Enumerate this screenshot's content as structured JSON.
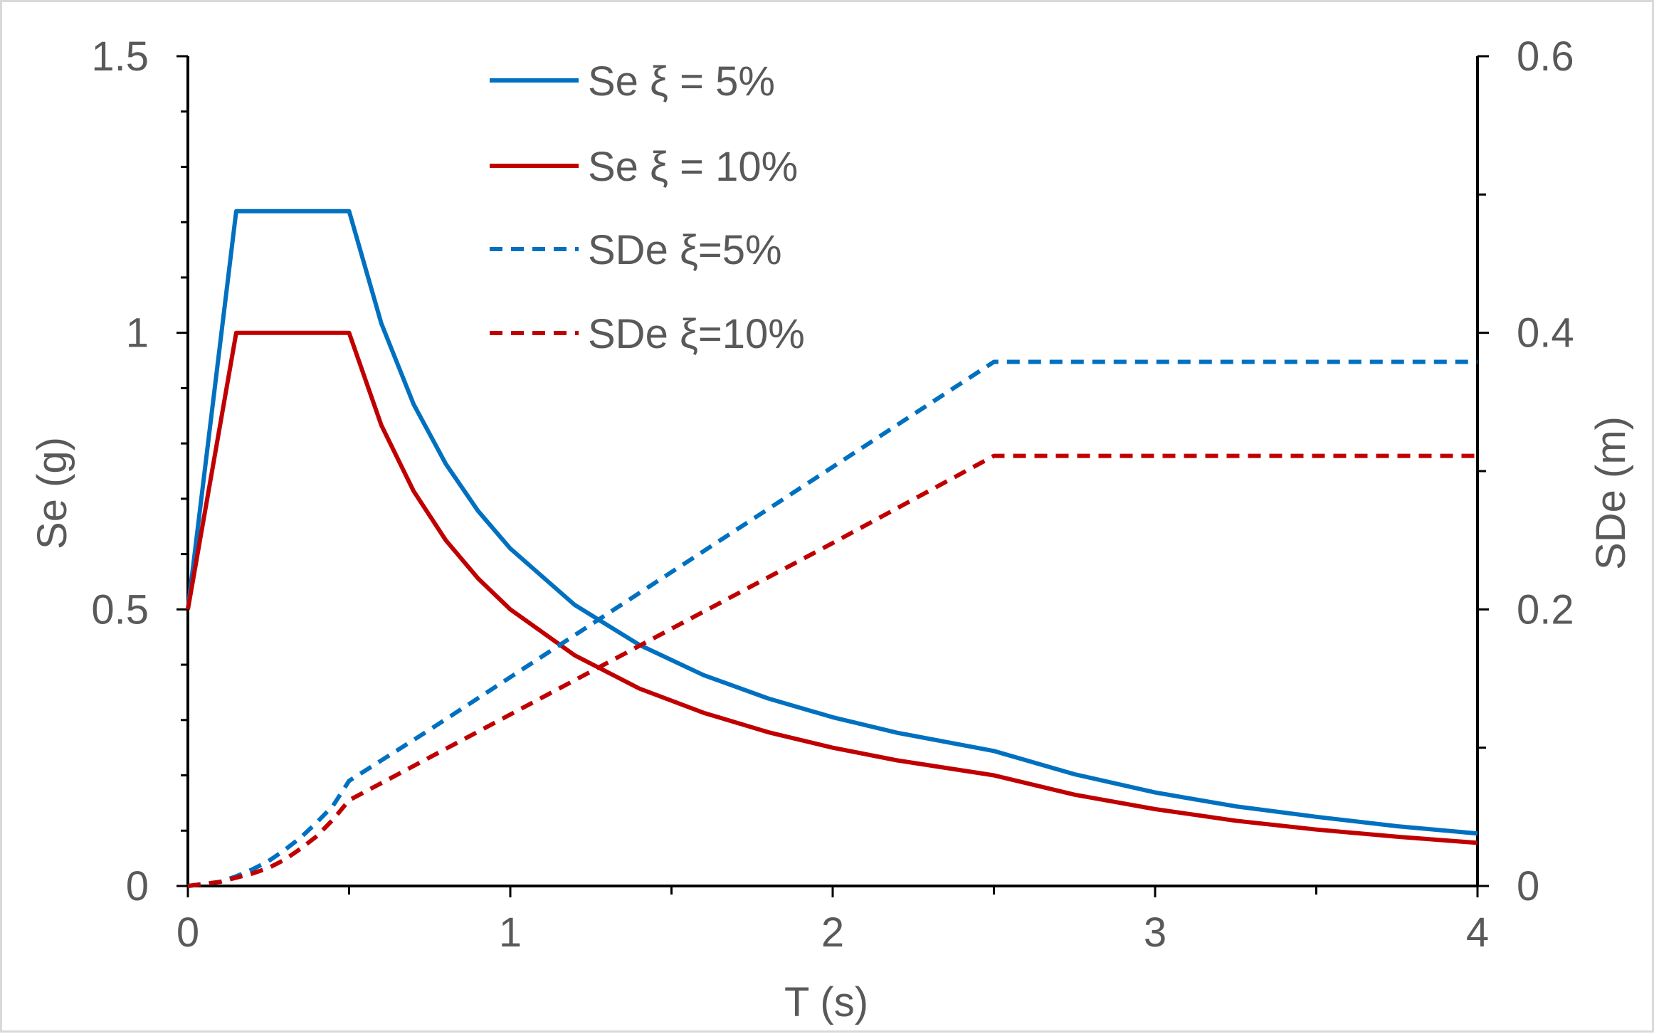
{
  "chart_data": {
    "type": "line",
    "title": "",
    "xlabel": "T (s)",
    "ylabel": "Se (g)",
    "y2label": "SDe (m)",
    "xlim": [
      0,
      4
    ],
    "ylim": [
      0,
      1.5
    ],
    "y2lim": [
      0,
      0.6
    ],
    "xticks": [
      "0",
      "1",
      "2",
      "3",
      "4"
    ],
    "yticks": [
      "0",
      "0.5",
      "1",
      "1.5"
    ],
    "y2ticks": [
      "0",
      "0.2",
      "0.4",
      "0.6"
    ],
    "grid": false,
    "legend_position": "top-center",
    "series": [
      {
        "name": "Se ξ = 5%",
        "axis": "left",
        "color": "#0070C0",
        "dash": "solid",
        "x": [
          0,
          0.15,
          0.5,
          0.6,
          0.7,
          0.8,
          0.9,
          1.0,
          1.2,
          1.4,
          1.6,
          1.8,
          2.0,
          2.2,
          2.5,
          2.75,
          3.0,
          3.25,
          3.5,
          3.75,
          4.0
        ],
        "y": [
          0.5,
          1.22,
          1.22,
          1.017,
          0.871,
          0.763,
          0.678,
          0.61,
          0.508,
          0.436,
          0.381,
          0.339,
          0.305,
          0.277,
          0.244,
          0.202,
          0.169,
          0.144,
          0.125,
          0.108,
          0.095
        ]
      },
      {
        "name": "Se ξ = 10%",
        "axis": "left",
        "color": "#C00000",
        "dash": "solid",
        "x": [
          0,
          0.15,
          0.5,
          0.6,
          0.7,
          0.8,
          0.9,
          1.0,
          1.2,
          1.4,
          1.6,
          1.8,
          2.0,
          2.2,
          2.5,
          2.75,
          3.0,
          3.25,
          3.5,
          3.75,
          4.0
        ],
        "y": [
          0.5,
          1.0,
          1.0,
          0.833,
          0.714,
          0.625,
          0.556,
          0.5,
          0.417,
          0.357,
          0.313,
          0.278,
          0.25,
          0.227,
          0.2,
          0.165,
          0.139,
          0.118,
          0.102,
          0.089,
          0.078
        ]
      },
      {
        "name": "SDe ξ=5%",
        "axis": "right",
        "color": "#0070C0",
        "dash": "dashed",
        "x": [
          0,
          0.1,
          0.15,
          0.2,
          0.25,
          0.3,
          0.35,
          0.4,
          0.45,
          0.5,
          0.75,
          1.0,
          1.5,
          2.0,
          2.5,
          3.0,
          3.5,
          4.0
        ],
        "y": [
          0,
          0.003,
          0.007,
          0.012,
          0.018,
          0.026,
          0.035,
          0.046,
          0.058,
          0.076,
          0.113,
          0.151,
          0.227,
          0.303,
          0.379,
          0.379,
          0.379,
          0.379
        ]
      },
      {
        "name": "SDe ξ=10%",
        "axis": "right",
        "color": "#C00000",
        "dash": "dashed",
        "x": [
          0,
          0.1,
          0.15,
          0.2,
          0.25,
          0.3,
          0.35,
          0.4,
          0.45,
          0.5,
          0.75,
          1.0,
          1.5,
          2.0,
          2.5,
          3.0,
          3.5,
          4.0
        ],
        "y": [
          0,
          0.003,
          0.006,
          0.009,
          0.013,
          0.019,
          0.027,
          0.036,
          0.048,
          0.062,
          0.093,
          0.124,
          0.186,
          0.248,
          0.311,
          0.311,
          0.311,
          0.311
        ]
      }
    ]
  }
}
